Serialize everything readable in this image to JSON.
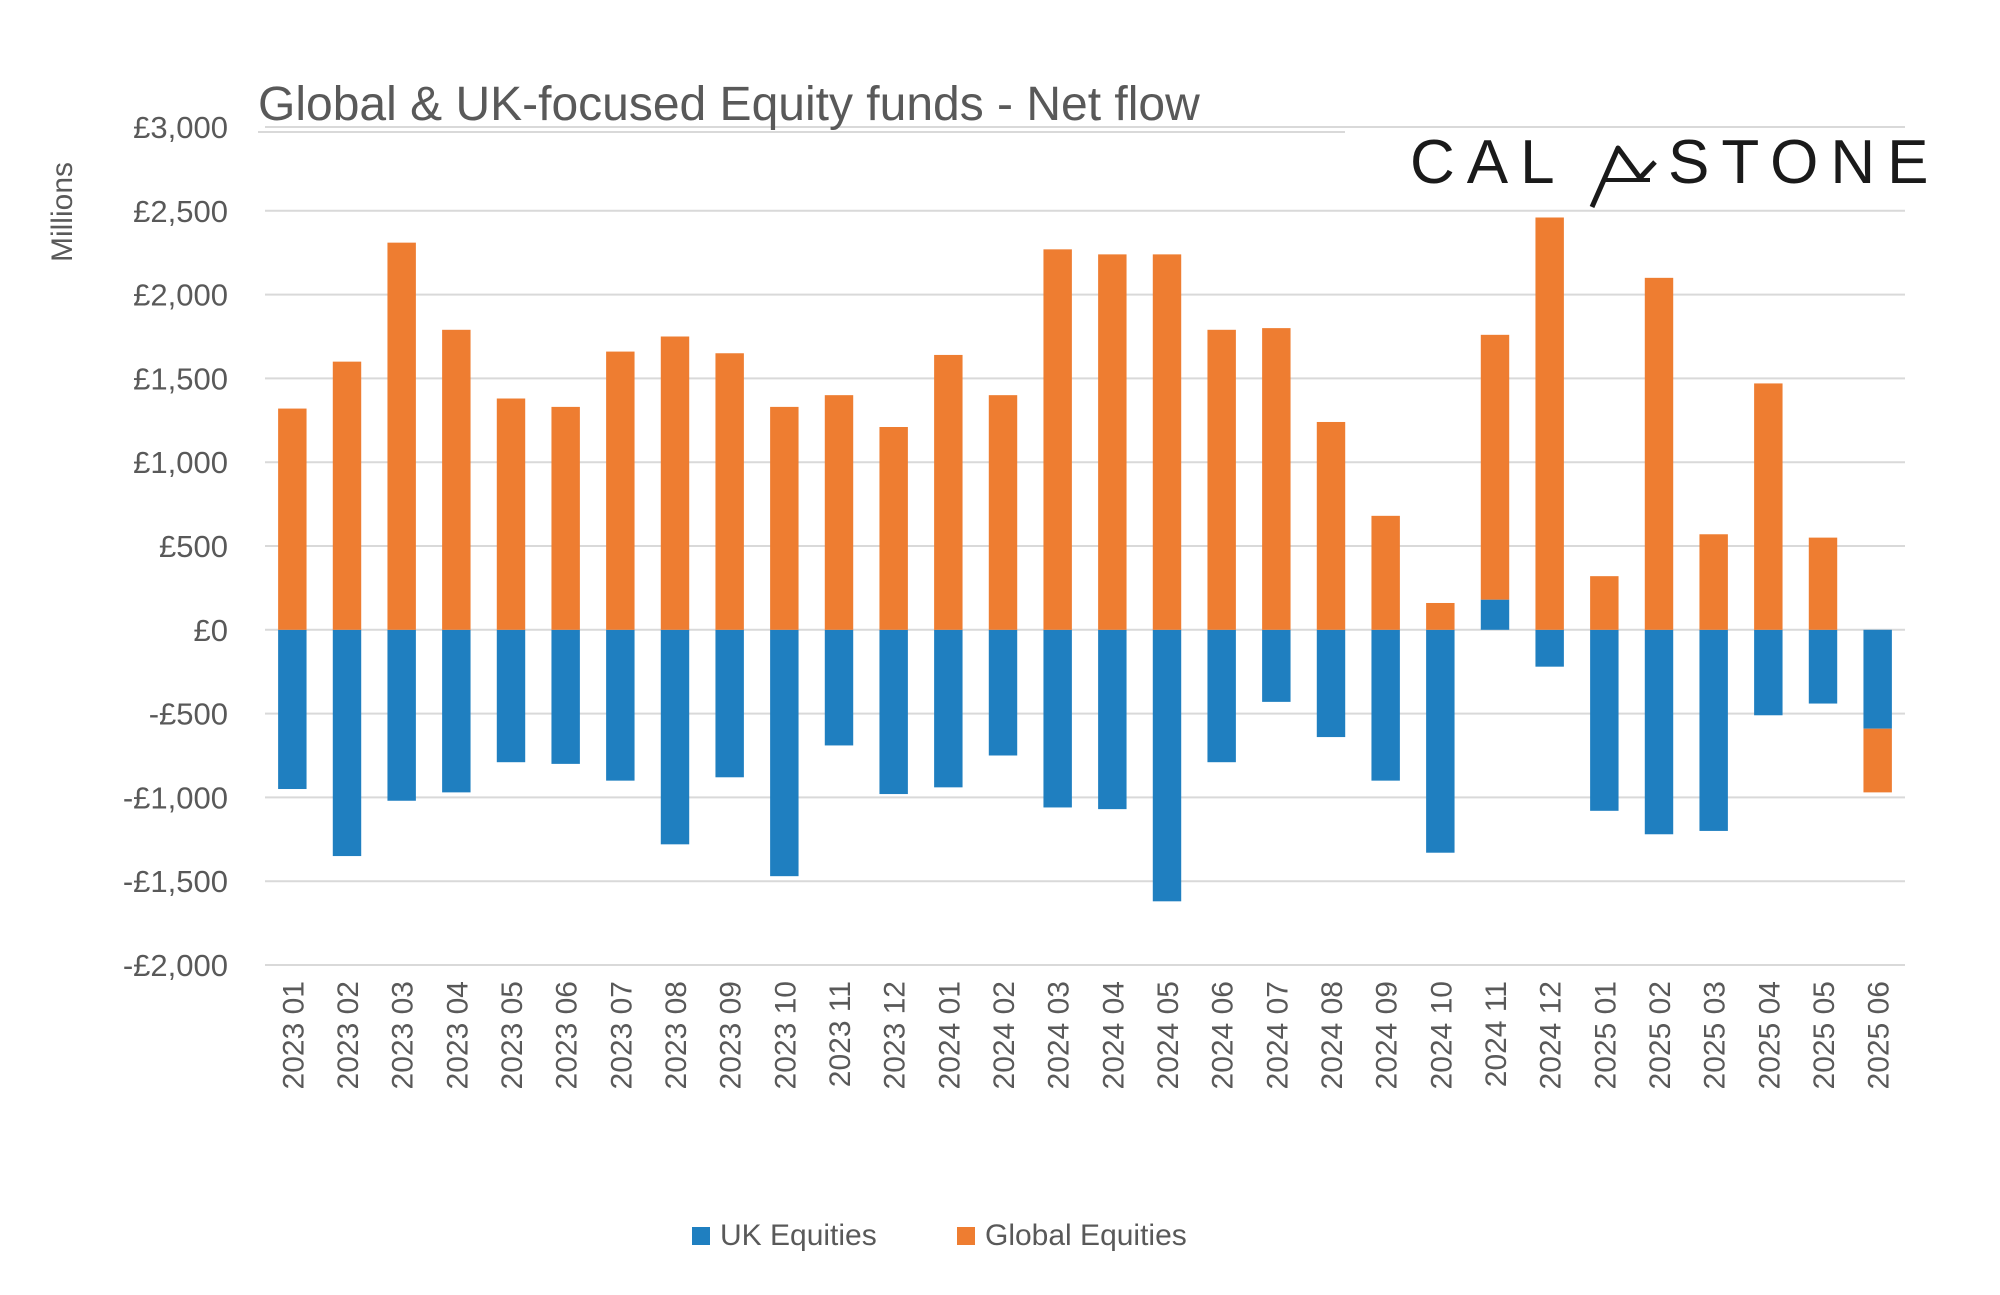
{
  "chart_data": {
    "type": "bar",
    "stacked": true,
    "title": "Global & UK-focused Equity funds - Net flow",
    "ylabel": "Millions",
    "xlabel": "",
    "brand": "CALASTONE",
    "ylim": [
      -2000,
      3000
    ],
    "yticks": [
      3000,
      2500,
      2000,
      1500,
      1000,
      500,
      0,
      -500,
      -1000,
      -1500,
      -2000
    ],
    "ytick_labels": [
      "£3,000",
      "£2,500",
      "£2,000",
      "£1,500",
      "£1,000",
      "£500",
      "£0",
      "-£500",
      "-£1,000",
      "-£1,500",
      "-£2,000"
    ],
    "grid": true,
    "legend_position": "bottom",
    "categories": [
      "2023 01",
      "2023 02",
      "2023 03",
      "2023 04",
      "2023 05",
      "2023 06",
      "2023 07",
      "2023 08",
      "2023 09",
      "2023 10",
      "2023 11",
      "2023 12",
      "2024 01",
      "2024 02",
      "2024 03",
      "2024 04",
      "2024 05",
      "2024 06",
      "2024 07",
      "2024 08",
      "2024 09",
      "2024 10",
      "2024 11",
      "2024 12",
      "2025 01",
      "2025 02",
      "2025 03",
      "2025 04",
      "2025 05",
      "2025 06"
    ],
    "series": [
      {
        "name": "UK Equities",
        "color": "#1f7fc0",
        "values": [
          -950,
          -1350,
          -1020,
          -970,
          -790,
          -800,
          -900,
          -1280,
          -880,
          -1470,
          -690,
          -980,
          -940,
          -750,
          -1060,
          -1070,
          -1620,
          -790,
          -430,
          -640,
          -900,
          -1330,
          180,
          -220,
          -1080,
          -1220,
          -1200,
          -510,
          -440,
          -590
        ]
      },
      {
        "name": "Global Equities",
        "color": "#ee7d31",
        "values": [
          1320,
          1600,
          2310,
          1790,
          1380,
          1330,
          1660,
          1750,
          1650,
          1330,
          1400,
          1210,
          1640,
          1400,
          2270,
          2240,
          2240,
          1790,
          1800,
          1240,
          680,
          160,
          1580,
          2460,
          320,
          2100,
          570,
          1470,
          550,
          -380
        ]
      }
    ]
  }
}
